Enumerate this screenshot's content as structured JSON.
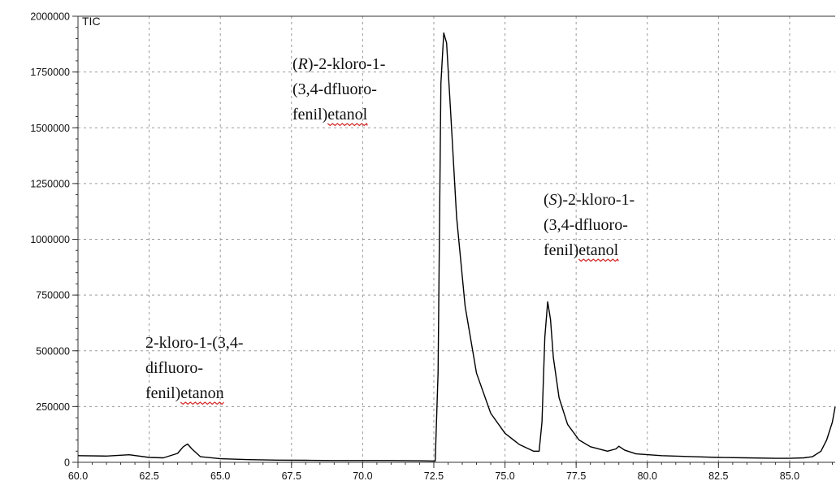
{
  "chart_data": {
    "type": "line",
    "title": "",
    "xlabel": "",
    "ylabel": "",
    "corner_label": "TIC",
    "xlim": [
      60.0,
      86.6
    ],
    "ylim": [
      0,
      2000000
    ],
    "grid": true,
    "x_ticks": [
      "60.0",
      "62.5",
      "65.0",
      "67.5",
      "70.0",
      "72.5",
      "75.0",
      "77.5",
      "80.0",
      "82.5",
      "85.0"
    ],
    "y_ticks": [
      "0",
      "250000",
      "500000",
      "750000",
      "1000000",
      "1250000",
      "1500000",
      "1750000",
      "2000000"
    ],
    "series": [
      {
        "color": "#000000",
        "x": [
          60.0,
          61.0,
          61.8,
          62.5,
          63.0,
          63.5,
          63.7,
          63.85,
          64.0,
          64.3,
          65.0,
          66.0,
          67.0,
          68.0,
          69.0,
          70.0,
          71.0,
          72.0,
          72.55,
          72.65,
          72.75,
          72.85,
          72.95,
          73.1,
          73.3,
          73.6,
          74.0,
          74.5,
          75.0,
          75.5,
          76.0,
          76.2,
          76.3,
          76.4,
          76.5,
          76.6,
          76.7,
          76.9,
          77.2,
          77.6,
          78.0,
          78.6,
          78.9,
          79.0,
          79.2,
          79.6,
          80.5,
          81.5,
          82.5,
          83.5,
          84.5,
          85.0,
          85.5,
          85.8,
          86.1,
          86.3,
          86.5,
          86.6
        ],
        "y": [
          30000,
          28000,
          34000,
          22000,
          20000,
          40000,
          70000,
          82000,
          60000,
          25000,
          16000,
          12000,
          10000,
          9000,
          8000,
          8000,
          8000,
          7000,
          6000,
          400000,
          1700000,
          1925000,
          1880000,
          1550000,
          1100000,
          700000,
          400000,
          220000,
          130000,
          80000,
          50000,
          50000,
          180000,
          560000,
          720000,
          640000,
          470000,
          290000,
          170000,
          100000,
          70000,
          50000,
          60000,
          72000,
          55000,
          38000,
          30000,
          26000,
          22000,
          20000,
          18000,
          18000,
          20000,
          25000,
          50000,
          100000,
          180000,
          250000
        ]
      }
    ],
    "annotations": [
      {
        "lines": [
          "2-kloro-1-(3,4-",
          "difluoro-",
          "fenil)etanon"
        ]
      },
      {
        "lines": [
          "(R)-2-kloro-1-",
          "(3,4-dfluoro-",
          "fenil)etanol"
        ],
        "italic_prefix": "R"
      },
      {
        "lines": [
          "(S)-2-kloro-1-",
          "(3,4-dfluoro-",
          "fenil)etanol"
        ],
        "italic_prefix": "S"
      }
    ],
    "colors": {
      "line": "#000000",
      "grid": "#9a9a9a",
      "squiggle": "#d42a2a"
    }
  }
}
